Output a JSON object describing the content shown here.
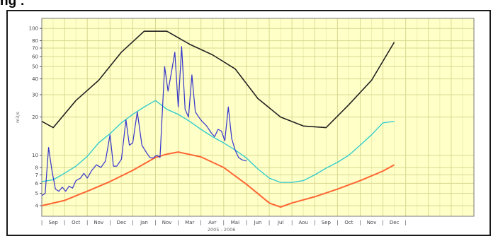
{
  "page": {
    "heading": "ng :"
  },
  "chart_data": {
    "type": "line",
    "title": "",
    "xlabel": "2005 - 2006",
    "ylabel": "m3/s",
    "y_scale": "log",
    "ylim": [
      3.3,
      120
    ],
    "xlim": [
      0,
      19
    ],
    "grid": true,
    "legend": "none",
    "colors": {
      "plot_bg": "#ffffc8",
      "grid_major": "#d8d890",
      "grid_minor": "#eeeeb0",
      "max_series": "#222222",
      "mean_series": "#33cccc",
      "min_series": "#ff6633",
      "observed_series": "#3333cc"
    },
    "y_ticks": [
      {
        "v": 4,
        "label": "4"
      },
      {
        "v": 5,
        "label": "5"
      },
      {
        "v": 6,
        "label": "6"
      },
      {
        "v": 7,
        "label": "7"
      },
      {
        "v": 8,
        "label": "8"
      },
      {
        "v": 10,
        "label": "10"
      },
      {
        "v": 20,
        "label": "20"
      },
      {
        "v": 30,
        "label": "30"
      },
      {
        "v": 40,
        "label": "40"
      },
      {
        "v": 50,
        "label": "50"
      },
      {
        "v": 60,
        "label": "60"
      },
      {
        "v": 70,
        "label": "70"
      },
      {
        "v": 80,
        "label": "80"
      },
      {
        "v": 100,
        "label": "100"
      }
    ],
    "x_ticks": [
      "Sep",
      "Oct",
      "Nov",
      "Dec",
      "Jan",
      "Nov",
      "Mar",
      "Avr",
      "Mai",
      "Jun",
      "Jul",
      "Aou",
      "Sep",
      "Oct",
      "Nov",
      "Dec"
    ],
    "series": [
      {
        "key": "max",
        "x": [
          0,
          0.5,
          1.5,
          2.5,
          3.5,
          4.5,
          5.5,
          6.5,
          7.5,
          8.5,
          9.5,
          10.5,
          11.5,
          12.5,
          13.5,
          14.5,
          15.5
        ],
        "y": [
          18.5,
          16.5,
          27,
          39,
          65,
          95,
          95,
          75,
          62,
          48,
          28,
          20,
          17,
          16.5,
          25,
          39,
          78
        ]
      },
      {
        "key": "mean",
        "x": [
          0,
          0.5,
          1,
          1.5,
          2,
          2.5,
          3,
          3.5,
          4,
          4.5,
          5,
          5.5,
          6,
          6.5,
          7,
          7.5,
          8,
          8.5,
          9,
          9.5,
          10,
          10.5,
          11,
          11.5,
          12,
          12.5,
          13,
          13.5,
          14,
          14.5,
          15,
          15.5
        ],
        "y": [
          6.2,
          6.4,
          7.2,
          8.2,
          9.8,
          12.5,
          14.8,
          18,
          21,
          24,
          27,
          23,
          21,
          18.5,
          16,
          14,
          12.5,
          11,
          9.5,
          7.8,
          6.6,
          6.1,
          6.1,
          6.3,
          7,
          7.9,
          8.8,
          10,
          12,
          14.5,
          18,
          18.5
        ]
      },
      {
        "key": "min",
        "x": [
          0,
          1,
          2,
          3,
          4,
          5,
          5.5,
          6,
          7,
          8,
          9,
          10,
          10.5,
          11,
          12,
          13,
          14,
          15,
          15.5
        ],
        "y": [
          4,
          4.4,
          5.2,
          6.2,
          7.6,
          9.6,
          10.2,
          10.6,
          9.7,
          8,
          5.9,
          4.2,
          3.9,
          4.2,
          4.7,
          5.4,
          6.3,
          7.5,
          8.4
        ]
      },
      {
        "key": "observed",
        "x": [
          0,
          0.15,
          0.3,
          0.45,
          0.6,
          0.75,
          0.9,
          1.05,
          1.2,
          1.35,
          1.5,
          1.7,
          1.85,
          2,
          2.2,
          2.4,
          2.6,
          2.8,
          3,
          3.15,
          3.3,
          3.5,
          3.7,
          3.85,
          4,
          4.2,
          4.4,
          4.6,
          4.75,
          4.9,
          5.05,
          5.2,
          5.4,
          5.55,
          5.7,
          5.85,
          6,
          6.15,
          6.3,
          6.45,
          6.6,
          6.75,
          6.9,
          7.05,
          7.25,
          7.45,
          7.6,
          7.75,
          7.9,
          8.05,
          8.2,
          8.35,
          8.5,
          8.65,
          8.8,
          9
        ],
        "y": [
          4.8,
          5,
          11.5,
          7.5,
          5.4,
          5.2,
          5.6,
          5.2,
          5.7,
          5.5,
          6.3,
          6.6,
          7.2,
          6.6,
          7.6,
          8.4,
          8,
          9,
          14.5,
          8.2,
          8.2,
          9.3,
          19,
          12,
          12.5,
          22,
          12,
          10.5,
          9.6,
          9.5,
          10,
          9.6,
          50,
          32,
          45,
          65,
          24,
          72,
          23,
          20,
          43,
          22,
          20,
          18.5,
          17,
          15,
          14,
          16,
          15.5,
          13,
          24,
          13.5,
          11,
          9.6,
          9.2,
          9
        ]
      }
    ]
  }
}
